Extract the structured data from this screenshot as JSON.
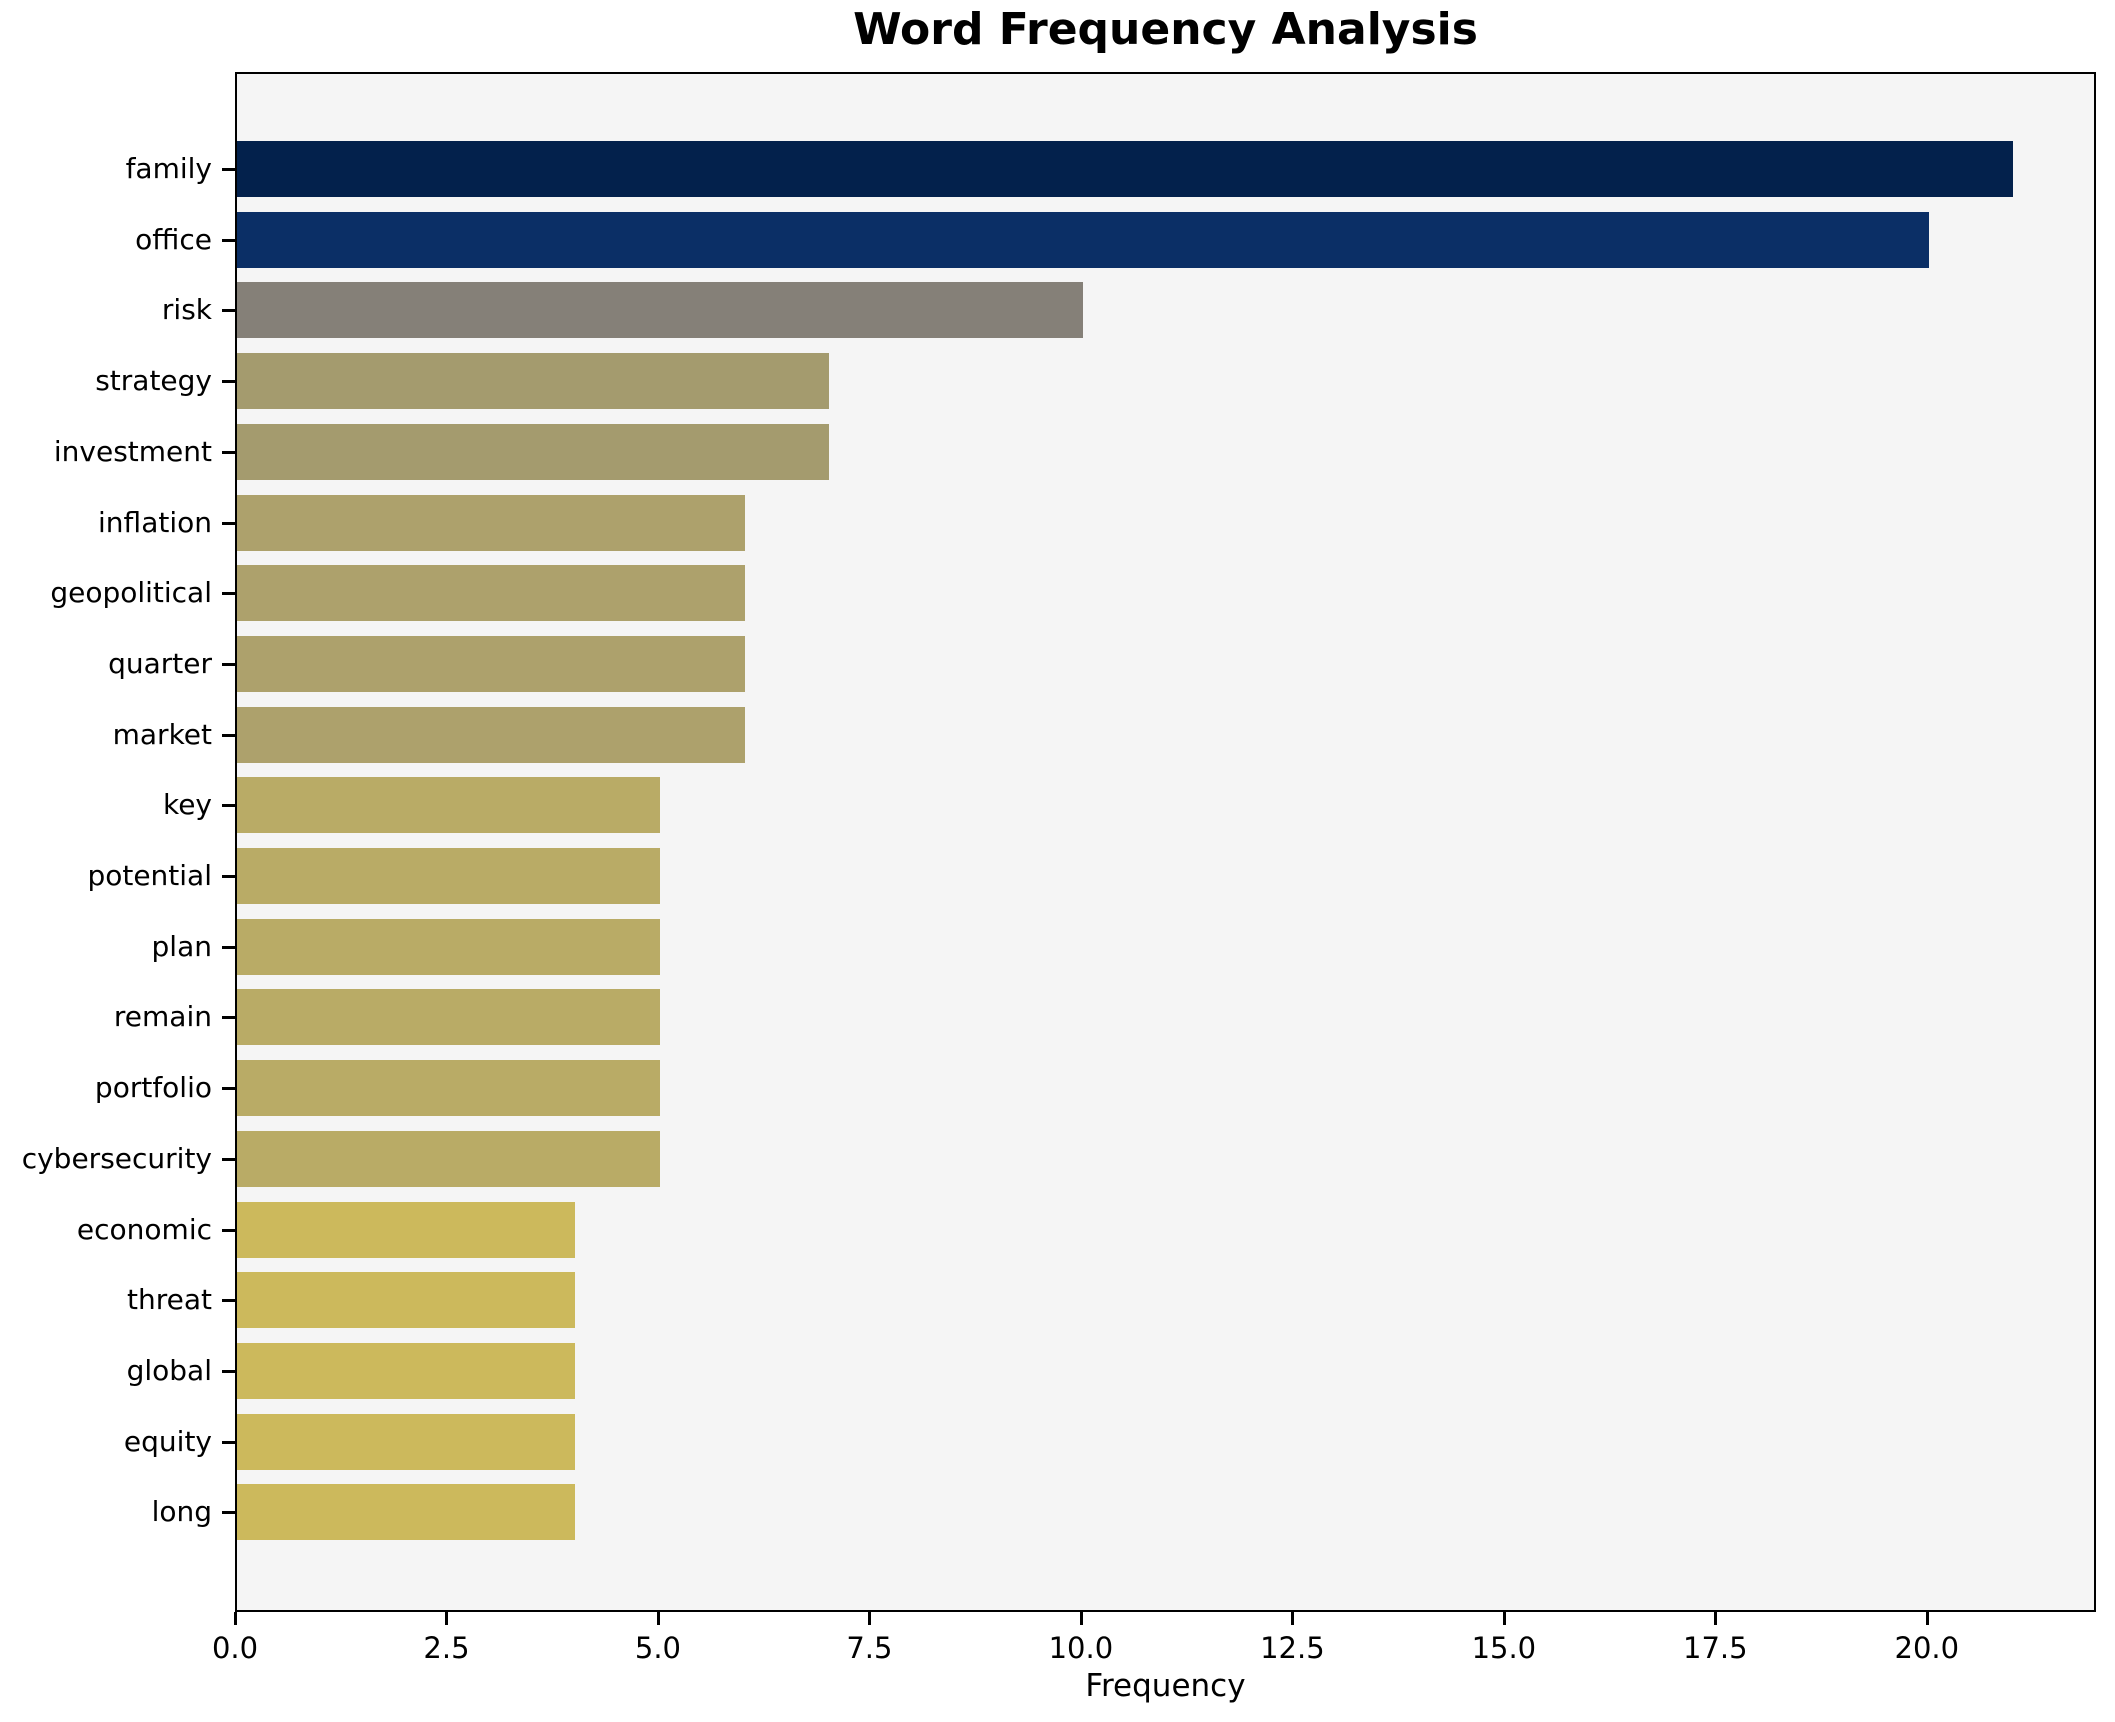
{
  "title": "Word Frequency Analysis",
  "chart_data": {
    "type": "bar",
    "orientation": "horizontal",
    "title": "Word Frequency Analysis",
    "xlabel": "Frequency",
    "ylabel": "",
    "categories": [
      "family",
      "office",
      "risk",
      "strategy",
      "investment",
      "inflation",
      "geopolitical",
      "quarter",
      "market",
      "key",
      "potential",
      "plan",
      "remain",
      "portfolio",
      "cybersecurity",
      "economic",
      "threat",
      "global",
      "equity",
      "long"
    ],
    "values": [
      21,
      20,
      10,
      7,
      7,
      6,
      6,
      6,
      6,
      5,
      5,
      5,
      5,
      5,
      5,
      4,
      4,
      4,
      4,
      4
    ],
    "bar_colors": [
      "#03214c",
      "#0b2f66",
      "#858078",
      "#a49b6e",
      "#a49b6e",
      "#ada16c",
      "#ada16c",
      "#ada16c",
      "#ada16c",
      "#b9ab66",
      "#b9ab66",
      "#b9ab66",
      "#b9ab66",
      "#b9ab66",
      "#b9ab66",
      "#ccb95c",
      "#ccb95c",
      "#ccb95c",
      "#ccb95c",
      "#ccb95c"
    ],
    "xlim": [
      0,
      22
    ],
    "x_ticks": [
      0,
      2.5,
      5,
      7.5,
      10,
      12.5,
      15,
      17.5,
      20
    ],
    "x_tick_labels": [
      "0.0",
      "2.5",
      "5.0",
      "7.5",
      "10.0",
      "12.5",
      "15.0",
      "17.5",
      "20.0"
    ],
    "grid": "off",
    "legend": "none",
    "plot_background": "#f5f5f5",
    "figure_background": "#ffffff"
  }
}
